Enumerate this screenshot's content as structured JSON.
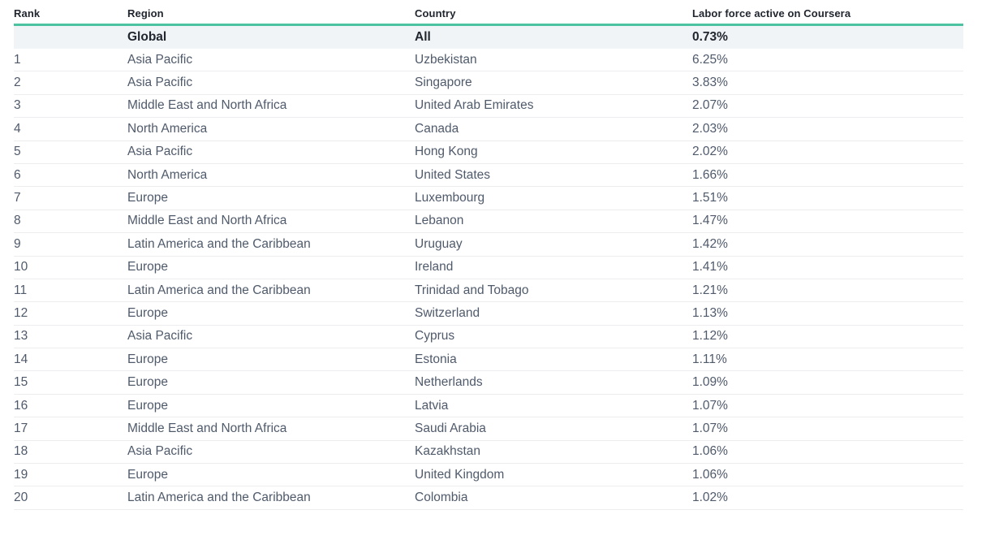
{
  "chart_data": {
    "type": "table",
    "columns": [
      "Rank",
      "Region",
      "Country",
      "Labor force active on Coursera"
    ],
    "summary_row": {
      "rank": "",
      "region": "Global",
      "country": "All",
      "value": "0.73%"
    },
    "rows": [
      {
        "rank": "1",
        "region": "Asia Pacific",
        "country": "Uzbekistan",
        "value": "6.25%"
      },
      {
        "rank": "2",
        "region": "Asia Pacific",
        "country": "Singapore",
        "value": "3.83%"
      },
      {
        "rank": "3",
        "region": "Middle East and North Africa",
        "country": "United Arab Emirates",
        "value": "2.07%"
      },
      {
        "rank": "4",
        "region": "North America",
        "country": "Canada",
        "value": "2.03%"
      },
      {
        "rank": "5",
        "region": "Asia Pacific",
        "country": "Hong Kong",
        "value": "2.02%"
      },
      {
        "rank": "6",
        "region": "North America",
        "country": "United States",
        "value": "1.66%"
      },
      {
        "rank": "7",
        "region": "Europe",
        "country": "Luxembourg",
        "value": "1.51%"
      },
      {
        "rank": "8",
        "region": "Middle East and North Africa",
        "country": "Lebanon",
        "value": "1.47%"
      },
      {
        "rank": "9",
        "region": "Latin America and the Caribbean",
        "country": "Uruguay",
        "value": "1.42%"
      },
      {
        "rank": "10",
        "region": "Europe",
        "country": "Ireland",
        "value": "1.41%"
      },
      {
        "rank": "11",
        "region": "Latin America and the Caribbean",
        "country": "Trinidad and Tobago",
        "value": "1.21%"
      },
      {
        "rank": "12",
        "region": "Europe",
        "country": "Switzerland",
        "value": "1.13%"
      },
      {
        "rank": "13",
        "region": "Asia Pacific",
        "country": "Cyprus",
        "value": "1.12%"
      },
      {
        "rank": "14",
        "region": "Europe",
        "country": "Estonia",
        "value": "1.11%"
      },
      {
        "rank": "15",
        "region": "Europe",
        "country": "Netherlands",
        "value": "1.09%"
      },
      {
        "rank": "16",
        "region": "Europe",
        "country": "Latvia",
        "value": "1.07%"
      },
      {
        "rank": "17",
        "region": "Middle East and North Africa",
        "country": "Saudi Arabia",
        "value": "1.07%"
      },
      {
        "rank": "18",
        "region": "Asia Pacific",
        "country": "Kazakhstan",
        "value": "1.06%"
      },
      {
        "rank": "19",
        "region": "Europe",
        "country": "United Kingdom",
        "value": "1.06%"
      },
      {
        "rank": "20",
        "region": "Latin America and the Caribbean",
        "country": "Colombia",
        "value": "1.02%"
      }
    ]
  },
  "colors": {
    "accent_teal": "#4cc3a0",
    "summary_row_bg": "#f0f4f7",
    "header_text": "#21262f",
    "body_text": "#4f5a6b",
    "divider": "#ededf0"
  }
}
